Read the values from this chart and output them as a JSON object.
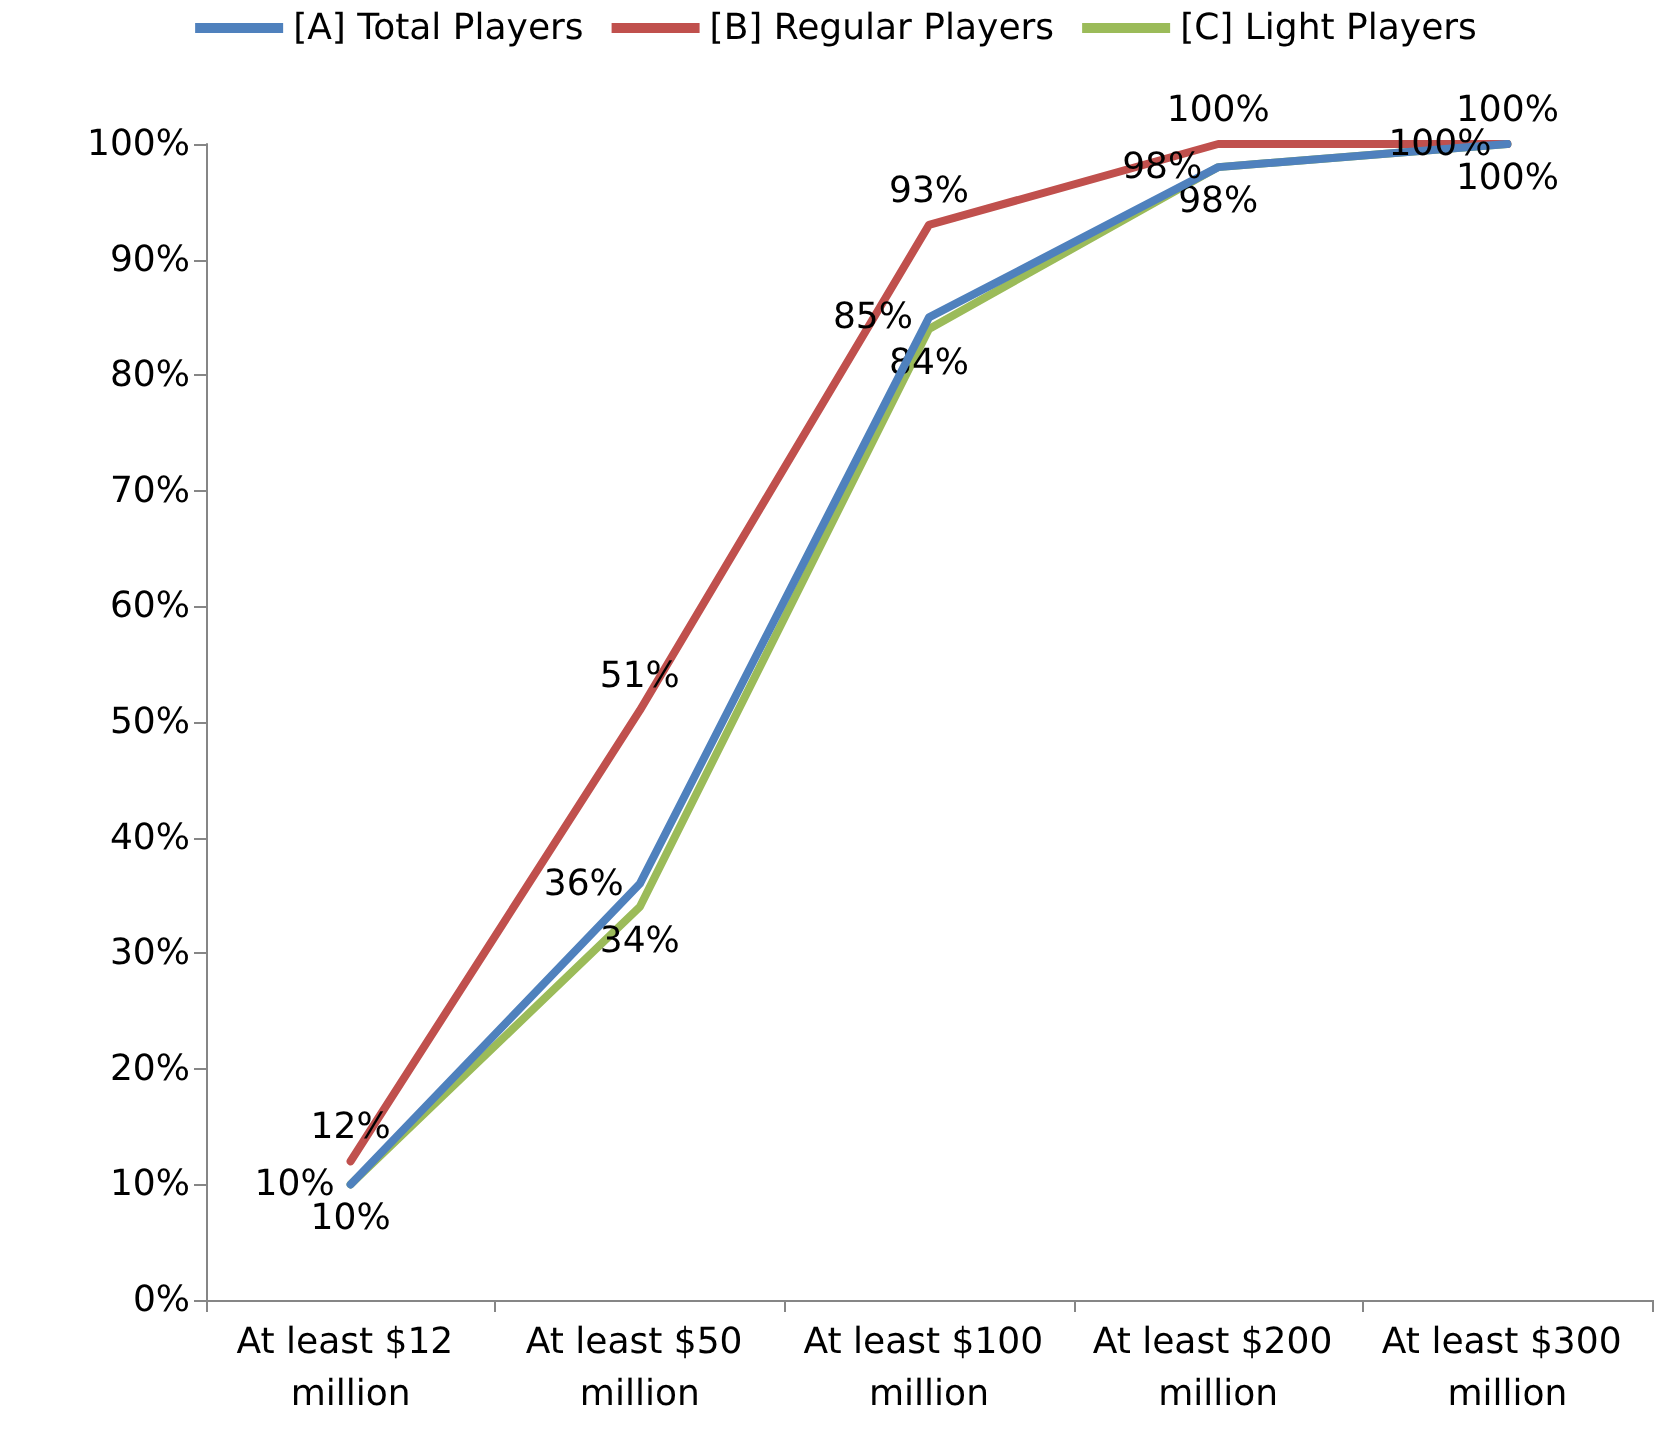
{
  "chart_data": {
    "type": "line",
    "categories": [
      "At least $12 million",
      "At least $50 million",
      "At least $100 million",
      "At least $200 million",
      "At least $300 million"
    ],
    "series": [
      {
        "name": "[A] Total Players",
        "color": "#4f81bd",
        "values": [
          10,
          36,
          85,
          98,
          100
        ],
        "value_labels": [
          "10%",
          "36%",
          "85%",
          "98%",
          "100%"
        ]
      },
      {
        "name": "[B] Regular Players",
        "color": "#c0504d",
        "values": [
          12,
          51,
          93,
          100,
          100
        ],
        "value_labels": [
          "12%",
          "51%",
          "93%",
          "100%",
          "100%"
        ]
      },
      {
        "name": "[C] Light Players",
        "color": "#9bbb59",
        "values": [
          10,
          34,
          84,
          98,
          100
        ],
        "value_labels": [
          "10%",
          "34%",
          "84%",
          "98%",
          "100%"
        ]
      }
    ],
    "ylim": [
      0,
      100
    ],
    "yticks": [
      {
        "value": 0,
        "label": "0%"
      },
      {
        "value": 10,
        "label": "10%"
      },
      {
        "value": 20,
        "label": "20%"
      },
      {
        "value": 30,
        "label": "30%"
      },
      {
        "value": 40,
        "label": "40%"
      },
      {
        "value": 50,
        "label": "50%"
      },
      {
        "value": 60,
        "label": "60%"
      },
      {
        "value": 70,
        "label": "70%"
      },
      {
        "value": 80,
        "label": "80%"
      },
      {
        "value": 90,
        "label": "90%"
      },
      {
        "value": 100,
        "label": "100%"
      }
    ],
    "grid": false,
    "legend": "top",
    "marker": "none",
    "line_style": "solid"
  }
}
